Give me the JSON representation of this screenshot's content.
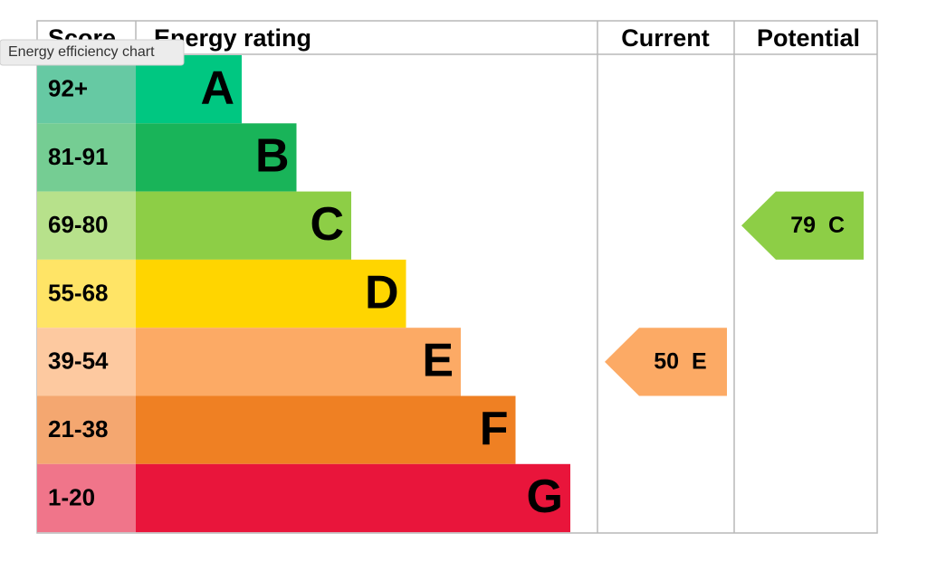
{
  "tooltip": "Energy efficiency chart",
  "header": {
    "score": "Score",
    "rating": "Energy rating",
    "current": "Current",
    "potential": "Potential"
  },
  "bands": [
    {
      "score": "92+",
      "letter": "A",
      "color": "#00c781",
      "score_color": "#66c9a3"
    },
    {
      "score": "81-91",
      "letter": "B",
      "color": "#19b459",
      "score_color": "#75cd93"
    },
    {
      "score": "69-80",
      "letter": "C",
      "color": "#8dce46",
      "score_color": "#b7e18b"
    },
    {
      "score": "55-68",
      "letter": "D",
      "color": "#ffd500",
      "score_color": "#ffe466"
    },
    {
      "score": "39-54",
      "letter": "E",
      "color": "#fcaa65",
      "score_color": "#fdc9a0"
    },
    {
      "score": "21-38",
      "letter": "F",
      "color": "#ef8023",
      "score_color": "#f4a770"
    },
    {
      "score": "1-20",
      "letter": "G",
      "color": "#e9153b",
      "score_color": "#f0758a"
    }
  ],
  "current": {
    "value": 50,
    "letter": "E",
    "color": "#fcaa65"
  },
  "potential": {
    "value": 79,
    "letter": "C",
    "color": "#8dce46"
  }
}
